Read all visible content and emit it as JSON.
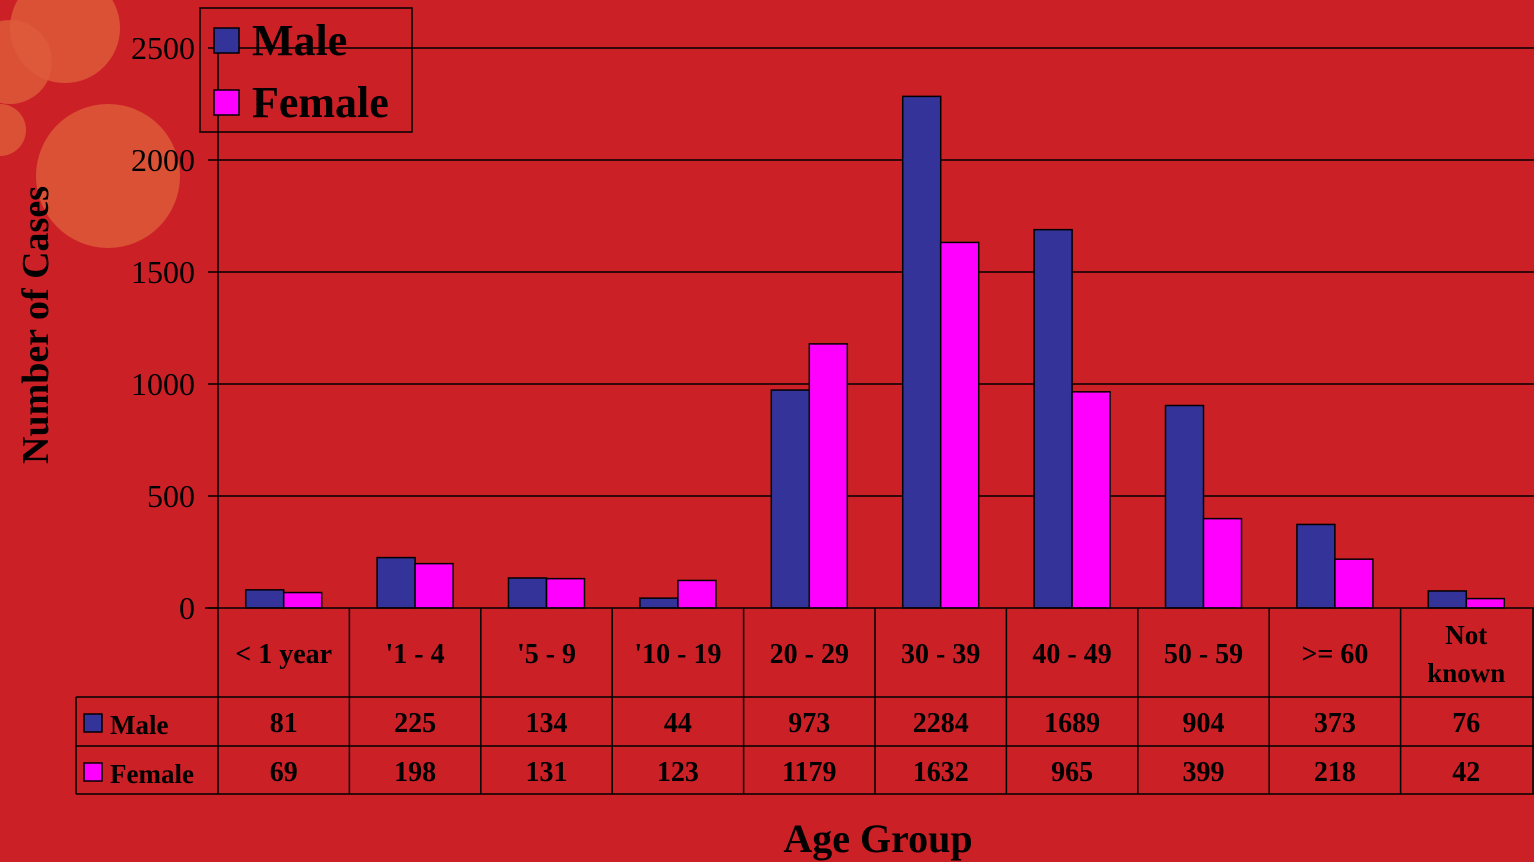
{
  "colors": {
    "background": "#cc2027",
    "male": "#333399",
    "female": "#ff00ff",
    "lines": "#000000",
    "decor": "#dd5a3a"
  },
  "chart_data": {
    "type": "bar",
    "xlabel": "Age Group",
    "ylabel": "Number of Cases",
    "ylim": [
      0,
      2500
    ],
    "yticks": [
      0,
      500,
      1000,
      1500,
      2000,
      2500
    ],
    "grid": true,
    "legend_position": "top-left",
    "categories": [
      "< 1 year",
      "'1 - 4",
      "'5 - 9",
      "'10 - 19",
      "20 - 29",
      "30 - 39",
      "40 - 49",
      "50 - 59",
      ">= 60",
      "Not known"
    ],
    "series": [
      {
        "name": "Male",
        "values": [
          81,
          225,
          134,
          44,
          973,
          2284,
          1689,
          904,
          373,
          76
        ]
      },
      {
        "name": "Female",
        "values": [
          69,
          198,
          131,
          123,
          1179,
          1632,
          965,
          399,
          218,
          42
        ]
      }
    ],
    "data_table": true
  }
}
